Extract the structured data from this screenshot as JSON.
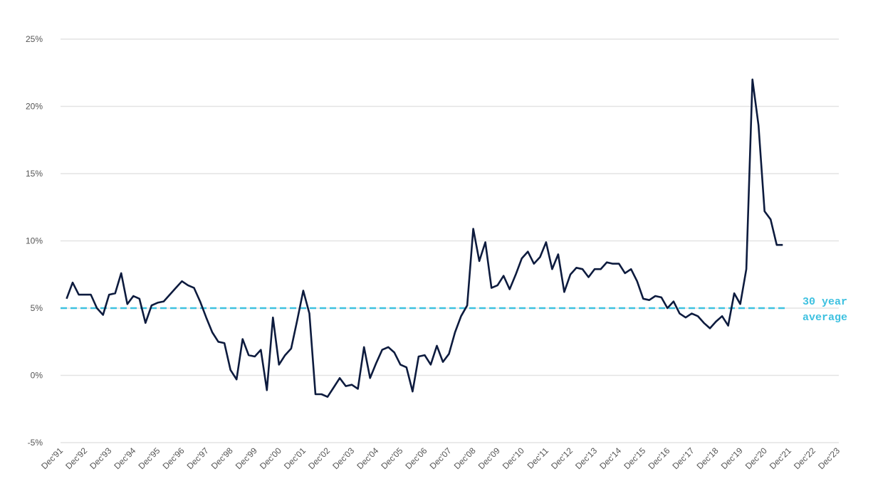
{
  "chart_data": {
    "type": "line",
    "x": [
      "1992-03",
      "1992-06",
      "1992-09",
      "1992-12",
      "1993-03",
      "1993-06",
      "1993-09",
      "1993-12",
      "1994-03",
      "1994-06",
      "1994-09",
      "1994-12",
      "1995-03",
      "1995-06",
      "1995-09",
      "1995-12",
      "1996-03",
      "1996-06",
      "1996-09",
      "1996-12",
      "1997-03",
      "1997-06",
      "1997-09",
      "1997-12",
      "1998-03",
      "1998-06",
      "1998-09",
      "1998-12",
      "1999-03",
      "1999-06",
      "1999-09",
      "1999-12",
      "2000-03",
      "2000-06",
      "2000-09",
      "2000-12",
      "2001-03",
      "2001-06",
      "2001-09",
      "2001-12",
      "2002-03",
      "2002-06",
      "2002-09",
      "2002-12",
      "2003-03",
      "2003-06",
      "2003-09",
      "2003-12",
      "2004-03",
      "2004-06",
      "2004-09",
      "2004-12",
      "2005-03",
      "2005-06",
      "2005-09",
      "2005-12",
      "2006-03",
      "2006-06",
      "2006-09",
      "2006-12",
      "2007-03",
      "2007-06",
      "2007-09",
      "2007-12",
      "2008-03",
      "2008-06",
      "2008-09",
      "2008-12",
      "2009-03",
      "2009-06",
      "2009-09",
      "2009-12",
      "2010-03",
      "2010-06",
      "2010-09",
      "2010-12",
      "2011-03",
      "2011-06",
      "2011-09",
      "2011-12",
      "2012-03",
      "2012-06",
      "2012-09",
      "2012-12",
      "2013-03",
      "2013-06",
      "2013-09",
      "2013-12",
      "2014-03",
      "2014-06",
      "2014-09",
      "2014-12",
      "2015-03",
      "2015-06",
      "2015-09",
      "2015-12",
      "2016-03",
      "2016-06",
      "2016-09",
      "2016-12",
      "2017-03",
      "2017-06",
      "2017-09",
      "2017-12",
      "2018-03",
      "2018-06",
      "2018-09",
      "2018-12",
      "2019-03",
      "2019-06",
      "2019-09",
      "2019-12",
      "2020-03",
      "2020-06",
      "2020-09",
      "2020-12",
      "2021-03",
      "2021-06",
      "2021-09"
    ],
    "series": [
      {
        "color": "#0d1b3e",
        "values": [
          5.7,
          6.9,
          6.0,
          6.0,
          6.0,
          5.0,
          4.5,
          6.0,
          6.1,
          7.6,
          5.3,
          5.9,
          5.7,
          3.9,
          5.2,
          5.4,
          5.5,
          6.0,
          6.5,
          7.0,
          6.7,
          6.5,
          5.5,
          4.3,
          3.2,
          2.5,
          2.4,
          0.4,
          -0.3,
          2.7,
          1.5,
          1.4,
          1.9,
          -1.1,
          4.3,
          0.8,
          1.5,
          2.0,
          4.1,
          6.3,
          4.6,
          -1.4,
          -1.4,
          -1.6,
          -0.9,
          -0.2,
          -0.8,
          -0.7,
          -1.0,
          2.1,
          -0.2,
          0.9,
          1.9,
          2.1,
          1.7,
          0.8,
          0.6,
          -1.2,
          1.4,
          1.5,
          0.8,
          2.2,
          1.0,
          1.6,
          3.2,
          4.4,
          5.2,
          10.9,
          8.5,
          9.9,
          6.5,
          6.7,
          7.4,
          6.4,
          7.5,
          8.7,
          9.2,
          8.3,
          8.8,
          9.9,
          7.9,
          9.0,
          6.2,
          7.5,
          8.0,
          7.9,
          7.3,
          7.9,
          7.9,
          8.4,
          8.3,
          8.3,
          7.6,
          7.9,
          7.0,
          5.7,
          5.6,
          5.9,
          5.8,
          5.0,
          5.5,
          4.6,
          4.3,
          4.6,
          4.4,
          3.9,
          3.5,
          4.0,
          4.4,
          3.7,
          6.1,
          5.3,
          7.9,
          22.0,
          18.6,
          12.2,
          11.6,
          9.7,
          9.7
        ]
      }
    ],
    "reference_line": {
      "value": 5,
      "label": [
        "30 year",
        "average"
      ],
      "color": "#3ec1e0"
    },
    "xlim": [
      "1991-12",
      "2023-12"
    ],
    "xticks": [
      {
        "value": "1991-12",
        "label": "Dec'91"
      },
      {
        "value": "1992-12",
        "label": "Dec'92"
      },
      {
        "value": "1993-12",
        "label": "Dec'93"
      },
      {
        "value": "1994-12",
        "label": "Dec'94"
      },
      {
        "value": "1995-12",
        "label": "Dec'95"
      },
      {
        "value": "1996-12",
        "label": "Dec'96"
      },
      {
        "value": "1997-12",
        "label": "Dec'97"
      },
      {
        "value": "1998-12",
        "label": "Dec'98"
      },
      {
        "value": "1999-12",
        "label": "Dec'99"
      },
      {
        "value": "2000-12",
        "label": "Dec'00"
      },
      {
        "value": "2001-12",
        "label": "Dec'01"
      },
      {
        "value": "2002-12",
        "label": "Dec'02"
      },
      {
        "value": "2003-12",
        "label": "Dec'03"
      },
      {
        "value": "2004-12",
        "label": "Dec'04"
      },
      {
        "value": "2005-12",
        "label": "Dec'05"
      },
      {
        "value": "2006-12",
        "label": "Dec'06"
      },
      {
        "value": "2007-12",
        "label": "Dec'07"
      },
      {
        "value": "2008-12",
        "label": "Dec'08"
      },
      {
        "value": "2009-12",
        "label": "Dec'09"
      },
      {
        "value": "2010-12",
        "label": "Dec'10"
      },
      {
        "value": "2011-12",
        "label": "Dec'11"
      },
      {
        "value": "2012-12",
        "label": "Dec'12"
      },
      {
        "value": "2013-12",
        "label": "Dec'13"
      },
      {
        "value": "2014-12",
        "label": "Dec'14"
      },
      {
        "value": "2015-12",
        "label": "Dec'15"
      },
      {
        "value": "2016-12",
        "label": "Dec'16"
      },
      {
        "value": "2017-12",
        "label": "Dec'17"
      },
      {
        "value": "2018-12",
        "label": "Dec'18"
      },
      {
        "value": "2019-12",
        "label": "Dec'19"
      },
      {
        "value": "2020-12",
        "label": "Dec'20"
      },
      {
        "value": "2021-12",
        "label": "Dec'21"
      },
      {
        "value": "2022-12",
        "label": "Dec'22"
      },
      {
        "value": "2023-12",
        "label": "Dec'23"
      }
    ],
    "ylim": [
      -5,
      25
    ],
    "yticks": [
      {
        "value": -5,
        "label": "-5%"
      },
      {
        "value": 0,
        "label": "0%"
      },
      {
        "value": 5,
        "label": "5%"
      },
      {
        "value": 10,
        "label": "10%"
      },
      {
        "value": 15,
        "label": "15%"
      },
      {
        "value": 20,
        "label": "20%"
      },
      {
        "value": 25,
        "label": "25%"
      }
    ],
    "grid": true
  }
}
